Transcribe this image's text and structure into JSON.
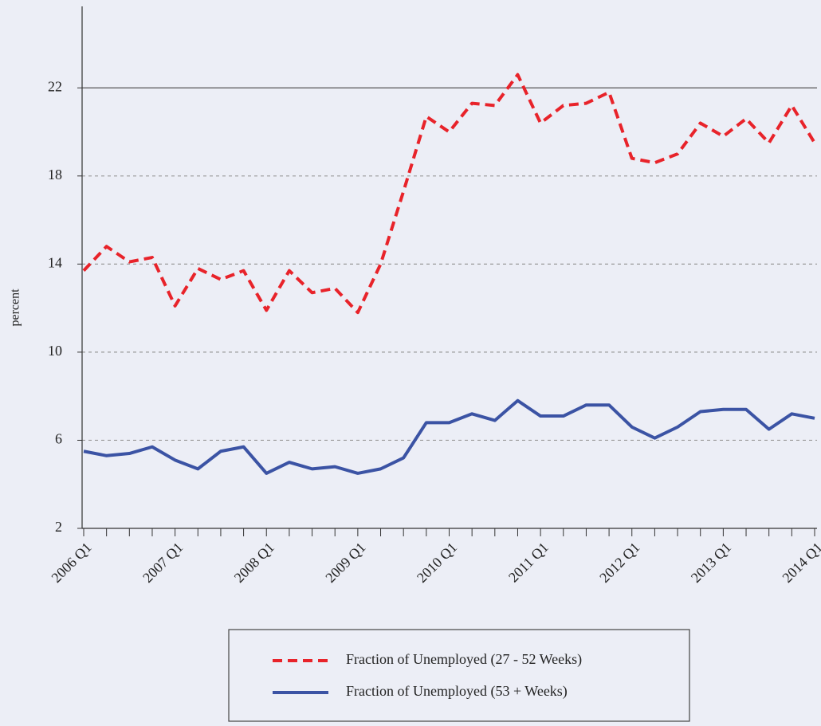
{
  "chart_data": {
    "type": "line",
    "y_label": "percent",
    "categories": [
      "2006 Q1",
      null,
      null,
      null,
      "2007 Q1",
      null,
      null,
      null,
      "2008 Q1",
      null,
      null,
      null,
      "2009 Q1",
      null,
      null,
      null,
      "2010 Q1",
      null,
      null,
      null,
      "2011 Q1",
      null,
      null,
      null,
      "2012 Q1",
      null,
      null,
      null,
      "2013 Q1",
      null,
      null,
      null,
      "2014 Q1"
    ],
    "series": [
      {
        "name": "Fraction of Unemployed (27 - 52 Weeks)",
        "color": "#e8232a",
        "dash": true,
        "values": [
          13.7,
          14.8,
          14.1,
          14.3,
          12.1,
          13.8,
          13.3,
          13.7,
          11.9,
          13.7,
          12.7,
          12.9,
          11.8,
          14.0,
          17.3,
          20.7,
          20.0,
          21.3,
          21.2,
          22.6,
          20.4,
          21.2,
          21.3,
          21.8,
          18.8,
          18.6,
          19.0,
          20.4,
          19.8,
          20.6,
          19.5,
          21.2,
          19.5
        ]
      },
      {
        "name": "Fraction of Unemployed (53 + Weeks)",
        "color": "#3b53a4",
        "dash": false,
        "values": [
          5.5,
          5.3,
          5.4,
          5.7,
          5.1,
          4.7,
          5.5,
          5.7,
          4.5,
          5.0,
          4.7,
          4.8,
          4.5,
          4.7,
          5.2,
          6.8,
          6.8,
          7.2,
          6.9,
          7.8,
          7.1,
          7.1,
          7.6,
          7.6,
          6.6,
          6.1,
          6.6,
          7.3,
          7.4,
          7.4,
          6.5,
          7.2,
          7.0
        ]
      }
    ],
    "ylim": [
      2,
      25.7
    ],
    "yticks": [
      2,
      6,
      10,
      14,
      18,
      22
    ],
    "grid": true,
    "legend": "bottom"
  }
}
